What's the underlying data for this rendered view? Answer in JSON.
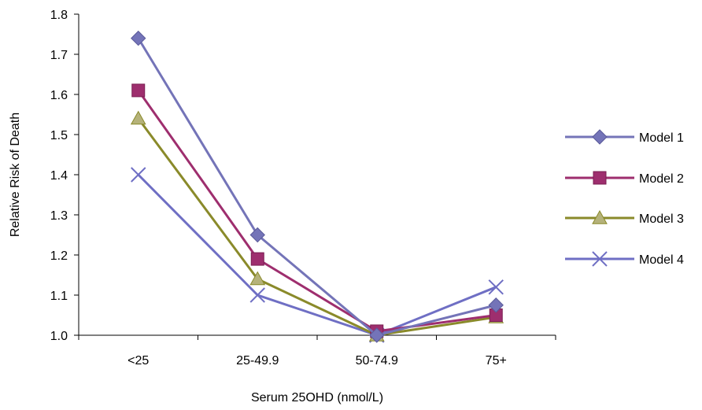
{
  "chart_data": {
    "type": "line",
    "title": "",
    "xlabel": "Serum 25OHD (nmol/L)",
    "ylabel": "Relative Risk of Death",
    "categories": [
      "<25",
      "25-49.9",
      "50-74.9",
      "75+"
    ],
    "ylim": [
      1.0,
      1.8
    ],
    "yticks": [
      "1.0",
      "1.1",
      "1.2",
      "1.3",
      "1.4",
      "1.5",
      "1.6",
      "1.7",
      "1.8"
    ],
    "grid": false,
    "legend_position": "right",
    "series": [
      {
        "name": "Model 1",
        "values": [
          1.74,
          1.25,
          1.0,
          1.075
        ],
        "color": "#7474b8",
        "marker": "diamond"
      },
      {
        "name": "Model 2",
        "values": [
          1.61,
          1.19,
          1.01,
          1.05
        ],
        "color": "#9e2e6e",
        "marker": "square"
      },
      {
        "name": "Model 3",
        "values": [
          1.54,
          1.14,
          1.0,
          1.045
        ],
        "color": "#8a8a2a",
        "marker": "triangle",
        "line_color": "#8a8a2a",
        "fill": "#b5b27a"
      },
      {
        "name": "Model 4",
        "values": [
          1.4,
          1.1,
          1.0,
          1.12
        ],
        "color": "#6f6fc4",
        "marker": "x"
      }
    ]
  }
}
